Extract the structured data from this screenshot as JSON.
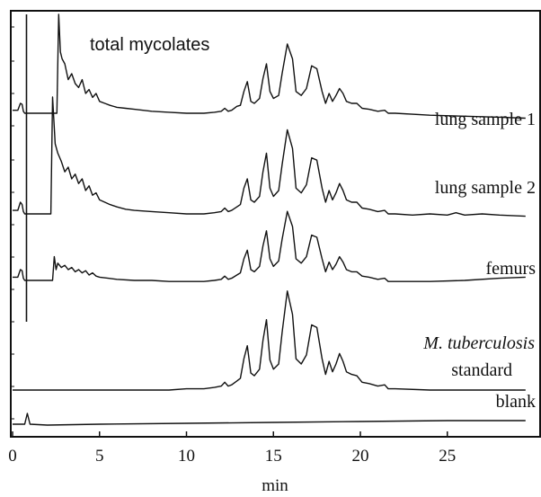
{
  "chart_data": {
    "type": "line",
    "title": "",
    "xlabel": "min",
    "ylabel": "",
    "xlim": [
      0,
      29.5
    ],
    "x_ticks": [
      0,
      5,
      10,
      15,
      20,
      25
    ],
    "x_tick_labels": [
      "0",
      "5",
      "10",
      "15",
      "20",
      "25"
    ],
    "grid": false,
    "annotation": "total mycolates",
    "series": [
      {
        "name": "lung sample 1",
        "points": [
          [
            0.0,
            0.03
          ],
          [
            0.3,
            0.03
          ],
          [
            0.45,
            0.1
          ],
          [
            0.55,
            0.09
          ],
          [
            0.62,
            0.02
          ],
          [
            0.7,
            0.0
          ],
          [
            2.55,
            0.0
          ],
          [
            2.65,
            1.0
          ],
          [
            2.75,
            0.62
          ],
          [
            2.85,
            0.55
          ],
          [
            3.0,
            0.5
          ],
          [
            3.2,
            0.34
          ],
          [
            3.4,
            0.4
          ],
          [
            3.6,
            0.3
          ],
          [
            3.8,
            0.26
          ],
          [
            4.0,
            0.34
          ],
          [
            4.2,
            0.2
          ],
          [
            4.4,
            0.24
          ],
          [
            4.6,
            0.16
          ],
          [
            4.8,
            0.2
          ],
          [
            5.0,
            0.12
          ],
          [
            5.3,
            0.1
          ],
          [
            5.6,
            0.08
          ],
          [
            6.0,
            0.06
          ],
          [
            6.5,
            0.05
          ],
          [
            7.0,
            0.04
          ],
          [
            8.0,
            0.02
          ],
          [
            9.0,
            0.01
          ],
          [
            10.0,
            0.0
          ],
          [
            11.0,
            0.0
          ],
          [
            11.6,
            0.01
          ],
          [
            12.0,
            0.02
          ],
          [
            12.2,
            0.05
          ],
          [
            12.4,
            0.02
          ],
          [
            12.6,
            0.03
          ],
          [
            12.9,
            0.07
          ],
          [
            13.1,
            0.08
          ],
          [
            13.3,
            0.22
          ],
          [
            13.5,
            0.32
          ],
          [
            13.7,
            0.12
          ],
          [
            13.9,
            0.1
          ],
          [
            14.2,
            0.15
          ],
          [
            14.4,
            0.35
          ],
          [
            14.6,
            0.5
          ],
          [
            14.8,
            0.22
          ],
          [
            15.0,
            0.15
          ],
          [
            15.3,
            0.18
          ],
          [
            15.5,
            0.4
          ],
          [
            15.8,
            0.7
          ],
          [
            16.1,
            0.55
          ],
          [
            16.3,
            0.22
          ],
          [
            16.6,
            0.18
          ],
          [
            16.9,
            0.25
          ],
          [
            17.2,
            0.48
          ],
          [
            17.5,
            0.45
          ],
          [
            17.8,
            0.22
          ],
          [
            18.0,
            0.1
          ],
          [
            18.2,
            0.2
          ],
          [
            18.4,
            0.12
          ],
          [
            18.6,
            0.18
          ],
          [
            18.8,
            0.25
          ],
          [
            19.0,
            0.2
          ],
          [
            19.2,
            0.12
          ],
          [
            19.5,
            0.1
          ],
          [
            19.8,
            0.1
          ],
          [
            20.1,
            0.05
          ],
          [
            20.5,
            0.04
          ],
          [
            21.0,
            0.02
          ],
          [
            21.4,
            0.03
          ],
          [
            21.6,
            0.0
          ],
          [
            22.0,
            0.0
          ],
          [
            24.0,
            -0.02
          ],
          [
            26.0,
            -0.03
          ],
          [
            28.0,
            -0.04
          ],
          [
            29.5,
            -0.05
          ]
        ]
      },
      {
        "name": "lung sample 2",
        "points": [
          [
            0.0,
            0.03
          ],
          [
            0.3,
            0.03
          ],
          [
            0.45,
            0.1
          ],
          [
            0.55,
            0.08
          ],
          [
            0.62,
            0.02
          ],
          [
            0.7,
            0.0
          ],
          [
            2.2,
            0.0
          ],
          [
            2.3,
            1.0
          ],
          [
            2.45,
            0.6
          ],
          [
            2.6,
            0.52
          ],
          [
            2.8,
            0.45
          ],
          [
            3.0,
            0.36
          ],
          [
            3.2,
            0.4
          ],
          [
            3.4,
            0.3
          ],
          [
            3.6,
            0.34
          ],
          [
            3.8,
            0.26
          ],
          [
            4.0,
            0.3
          ],
          [
            4.2,
            0.2
          ],
          [
            4.4,
            0.24
          ],
          [
            4.6,
            0.16
          ],
          [
            4.8,
            0.18
          ],
          [
            5.0,
            0.12
          ],
          [
            5.3,
            0.1
          ],
          [
            5.6,
            0.08
          ],
          [
            6.0,
            0.06
          ],
          [
            6.5,
            0.04
          ],
          [
            7.0,
            0.03
          ],
          [
            8.0,
            0.02
          ],
          [
            9.0,
            0.01
          ],
          [
            10.0,
            0.0
          ],
          [
            11.0,
            0.0
          ],
          [
            11.6,
            0.01
          ],
          [
            12.0,
            0.02
          ],
          [
            12.2,
            0.05
          ],
          [
            12.4,
            0.02
          ],
          [
            12.6,
            0.03
          ],
          [
            12.9,
            0.06
          ],
          [
            13.1,
            0.08
          ],
          [
            13.3,
            0.22
          ],
          [
            13.5,
            0.3
          ],
          [
            13.7,
            0.12
          ],
          [
            13.9,
            0.1
          ],
          [
            14.2,
            0.15
          ],
          [
            14.4,
            0.36
          ],
          [
            14.6,
            0.52
          ],
          [
            14.8,
            0.22
          ],
          [
            15.0,
            0.15
          ],
          [
            15.3,
            0.2
          ],
          [
            15.5,
            0.42
          ],
          [
            15.8,
            0.72
          ],
          [
            16.1,
            0.56
          ],
          [
            16.3,
            0.22
          ],
          [
            16.6,
            0.18
          ],
          [
            16.9,
            0.25
          ],
          [
            17.2,
            0.48
          ],
          [
            17.5,
            0.46
          ],
          [
            17.8,
            0.22
          ],
          [
            18.0,
            0.1
          ],
          [
            18.2,
            0.2
          ],
          [
            18.4,
            0.12
          ],
          [
            18.6,
            0.18
          ],
          [
            18.8,
            0.26
          ],
          [
            19.0,
            0.2
          ],
          [
            19.2,
            0.12
          ],
          [
            19.5,
            0.1
          ],
          [
            19.8,
            0.1
          ],
          [
            20.1,
            0.05
          ],
          [
            20.5,
            0.04
          ],
          [
            21.0,
            0.02
          ],
          [
            21.4,
            0.03
          ],
          [
            21.6,
            0.0
          ],
          [
            22.0,
            0.0
          ],
          [
            23.0,
            -0.01
          ],
          [
            24.0,
            0.0
          ],
          [
            25.0,
            -0.01
          ],
          [
            25.5,
            0.01
          ],
          [
            26.0,
            -0.01
          ],
          [
            27.0,
            0.0
          ],
          [
            28.0,
            -0.01
          ],
          [
            29.5,
            -0.02
          ]
        ]
      },
      {
        "name": "femurs",
        "points": [
          [
            0.0,
            0.03
          ],
          [
            0.3,
            0.03
          ],
          [
            0.45,
            0.1
          ],
          [
            0.55,
            0.09
          ],
          [
            0.62,
            0.02
          ],
          [
            0.7,
            0.0
          ],
          [
            2.3,
            0.0
          ],
          [
            2.4,
            0.22
          ],
          [
            2.5,
            0.1
          ],
          [
            2.6,
            0.16
          ],
          [
            2.8,
            0.12
          ],
          [
            3.0,
            0.14
          ],
          [
            3.2,
            0.1
          ],
          [
            3.4,
            0.12
          ],
          [
            3.6,
            0.08
          ],
          [
            3.8,
            0.1
          ],
          [
            4.0,
            0.07
          ],
          [
            4.2,
            0.09
          ],
          [
            4.4,
            0.05
          ],
          [
            4.6,
            0.07
          ],
          [
            4.8,
            0.04
          ],
          [
            5.0,
            0.03
          ],
          [
            5.5,
            0.02
          ],
          [
            6.0,
            0.01
          ],
          [
            7.0,
            0.0
          ],
          [
            8.0,
            0.0
          ],
          [
            9.0,
            -0.01
          ],
          [
            10.0,
            -0.01
          ],
          [
            11.0,
            -0.01
          ],
          [
            11.6,
            0.0
          ],
          [
            12.0,
            0.01
          ],
          [
            12.2,
            0.04
          ],
          [
            12.4,
            0.01
          ],
          [
            12.6,
            0.02
          ],
          [
            12.9,
            0.05
          ],
          [
            13.1,
            0.07
          ],
          [
            13.3,
            0.2
          ],
          [
            13.5,
            0.28
          ],
          [
            13.7,
            0.1
          ],
          [
            13.9,
            0.08
          ],
          [
            14.2,
            0.13
          ],
          [
            14.4,
            0.32
          ],
          [
            14.6,
            0.46
          ],
          [
            14.8,
            0.2
          ],
          [
            15.0,
            0.13
          ],
          [
            15.3,
            0.18
          ],
          [
            15.5,
            0.38
          ],
          [
            15.8,
            0.64
          ],
          [
            16.1,
            0.5
          ],
          [
            16.3,
            0.2
          ],
          [
            16.6,
            0.16
          ],
          [
            16.9,
            0.22
          ],
          [
            17.2,
            0.42
          ],
          [
            17.5,
            0.4
          ],
          [
            17.8,
            0.2
          ],
          [
            18.0,
            0.08
          ],
          [
            18.2,
            0.17
          ],
          [
            18.4,
            0.1
          ],
          [
            18.6,
            0.15
          ],
          [
            18.8,
            0.22
          ],
          [
            19.0,
            0.17
          ],
          [
            19.2,
            0.1
          ],
          [
            19.5,
            0.08
          ],
          [
            19.8,
            0.08
          ],
          [
            20.1,
            0.04
          ],
          [
            20.5,
            0.03
          ],
          [
            21.0,
            0.01
          ],
          [
            21.4,
            0.02
          ],
          [
            21.6,
            -0.01
          ],
          [
            22.0,
            -0.01
          ],
          [
            24.0,
            -0.01
          ],
          [
            26.0,
            0.0
          ],
          [
            28.0,
            0.02
          ],
          [
            29.5,
            0.03
          ]
        ]
      },
      {
        "name": "M. tuberculosis standard",
        "points": [
          [
            0.0,
            0.0
          ],
          [
            3.0,
            0.0
          ],
          [
            6.0,
            0.0
          ],
          [
            9.0,
            0.0
          ],
          [
            10.0,
            0.01
          ],
          [
            11.0,
            0.01
          ],
          [
            11.6,
            0.02
          ],
          [
            12.0,
            0.03
          ],
          [
            12.2,
            0.06
          ],
          [
            12.4,
            0.03
          ],
          [
            12.6,
            0.04
          ],
          [
            12.9,
            0.07
          ],
          [
            13.1,
            0.09
          ],
          [
            13.3,
            0.24
          ],
          [
            13.5,
            0.34
          ],
          [
            13.7,
            0.13
          ],
          [
            13.9,
            0.11
          ],
          [
            14.2,
            0.16
          ],
          [
            14.4,
            0.38
          ],
          [
            14.6,
            0.54
          ],
          [
            14.8,
            0.23
          ],
          [
            15.0,
            0.16
          ],
          [
            15.3,
            0.2
          ],
          [
            15.5,
            0.44
          ],
          [
            15.8,
            0.76
          ],
          [
            16.1,
            0.58
          ],
          [
            16.3,
            0.24
          ],
          [
            16.6,
            0.2
          ],
          [
            16.9,
            0.27
          ],
          [
            17.2,
            0.5
          ],
          [
            17.5,
            0.48
          ],
          [
            17.8,
            0.24
          ],
          [
            18.0,
            0.12
          ],
          [
            18.2,
            0.22
          ],
          [
            18.4,
            0.14
          ],
          [
            18.6,
            0.2
          ],
          [
            18.8,
            0.28
          ],
          [
            19.0,
            0.22
          ],
          [
            19.2,
            0.14
          ],
          [
            19.5,
            0.12
          ],
          [
            19.8,
            0.11
          ],
          [
            20.1,
            0.06
          ],
          [
            20.5,
            0.05
          ],
          [
            21.0,
            0.03
          ],
          [
            21.4,
            0.04
          ],
          [
            21.6,
            0.01
          ],
          [
            22.0,
            0.01
          ],
          [
            24.0,
            0.0
          ],
          [
            26.0,
            0.0
          ],
          [
            28.0,
            0.0
          ],
          [
            29.5,
            0.0
          ]
        ]
      },
      {
        "name": "blank",
        "points": [
          [
            0.0,
            0.0
          ],
          [
            0.7,
            0.0
          ],
          [
            0.85,
            0.12
          ],
          [
            1.0,
            0.0
          ],
          [
            2.0,
            -0.01
          ],
          [
            5.0,
            0.0
          ],
          [
            10.0,
            0.01
          ],
          [
            15.0,
            0.02
          ],
          [
            20.0,
            0.03
          ],
          [
            25.0,
            0.04
          ],
          [
            29.5,
            0.04
          ]
        ]
      }
    ]
  }
}
